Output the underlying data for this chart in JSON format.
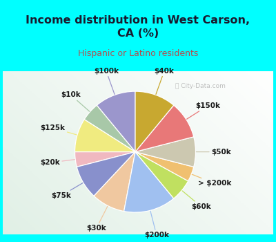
{
  "title": "Income distribution in West Carson,\nCA (%)",
  "subtitle": "Hispanic or Latino residents",
  "bg_cyan": "#00FFFF",
  "bg_chart_color1": "#f0faf5",
  "bg_chart_color2": "#c8ecd8",
  "title_color": "#1a1a2e",
  "subtitle_color": "#b05050",
  "watermark": "City-Data.com",
  "labels": [
    "$100k",
    "$10k",
    "$125k",
    "$20k",
    "$75k",
    "$30k",
    "$200k",
    "$60k",
    "> $200k",
    "$50k",
    "$150k",
    "$40k"
  ],
  "sizes": [
    11,
    5,
    9,
    4,
    9,
    9,
    14,
    6,
    4,
    8,
    10,
    11
  ],
  "colors": [
    "#9b96cc",
    "#a8c8a8",
    "#f0eb80",
    "#f0b8c0",
    "#8890cc",
    "#f0c8a0",
    "#a0c0f0",
    "#c0e060",
    "#f0c070",
    "#ccc8b0",
    "#e87878",
    "#c8a830"
  ],
  "startangle": 90,
  "label_fontsize": 7.5,
  "label_color": "#1a1a1a"
}
